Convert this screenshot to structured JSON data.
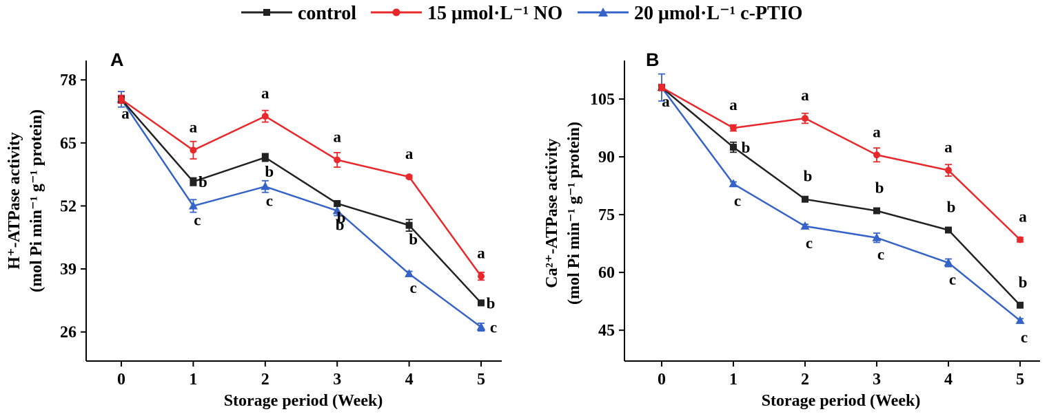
{
  "legend": {
    "items": [
      {
        "label": "control",
        "color": "#222222",
        "marker": "square"
      },
      {
        "label": "15 μmol·L⁻¹ NO",
        "color": "#e8282b",
        "marker": "circle"
      },
      {
        "label": "20 μmol·L⁻¹ c-PTIO",
        "color": "#3563c8",
        "marker": "triangle"
      }
    ]
  },
  "chart_data": [
    {
      "panel": "A",
      "type": "line",
      "xlabel": "Storage period (Week)",
      "ylabel_line1": "H⁺-ATPase activity",
      "ylabel_line2": "(mol Pi min⁻¹ g⁻¹ protein)",
      "x": [
        0,
        1,
        2,
        3,
        4,
        5
      ],
      "ylim": [
        20,
        82
      ],
      "yticks": [
        26,
        39,
        52,
        65,
        78
      ],
      "series": [
        {
          "name": "control",
          "values": [
            74,
            57,
            62,
            52.5,
            48,
            32
          ],
          "errors": [
            0.8,
            0.8,
            0.8,
            0.5,
            1.2,
            0.4
          ],
          "letters": [
            "a",
            "b",
            "b",
            "b",
            "b",
            "b"
          ]
        },
        {
          "name": "15 μmol·L⁻¹ NO",
          "values": [
            74,
            63.5,
            70.5,
            61.5,
            58,
            37.5
          ],
          "errors": [
            0.8,
            1.8,
            1.2,
            1.5,
            0.3,
            0.8
          ],
          "letters": [
            "",
            "a",
            "a",
            "a",
            "a",
            "a"
          ]
        },
        {
          "name": "20 μmol·L⁻¹ c-PTIO",
          "values": [
            74,
            52,
            56,
            51,
            38,
            27
          ],
          "errors": [
            1.6,
            1.3,
            1.2,
            1,
            0.5,
            0.8
          ],
          "letters": [
            "",
            "c",
            "c",
            "b",
            "c",
            "c"
          ]
        }
      ]
    },
    {
      "panel": "B",
      "type": "line",
      "xlabel": "Storage period (Week)",
      "ylabel_line1": "Ca²⁺-ATPase activity",
      "ylabel_line2": "(mol Pi min⁻¹ g⁻¹ protein)",
      "x": [
        0,
        1,
        2,
        3,
        4,
        5
      ],
      "ylim": [
        37,
        115
      ],
      "yticks": [
        45,
        60,
        75,
        90,
        105
      ],
      "series": [
        {
          "name": "control",
          "values": [
            108,
            92.5,
            79,
            76,
            71,
            51.5
          ],
          "errors": [
            0.8,
            1.3,
            0.6,
            0.5,
            0.4,
            0.6
          ],
          "letters": [
            "a",
            "b",
            "b",
            "b",
            "b",
            "b"
          ]
        },
        {
          "name": "15 μmol·L⁻¹ NO",
          "values": [
            108,
            97.5,
            100,
            90.5,
            86.5,
            68.5
          ],
          "errors": [
            0.8,
            0.8,
            1.3,
            1.8,
            1.5,
            0.6
          ],
          "letters": [
            "",
            "a",
            "a",
            "a",
            "a",
            "a"
          ]
        },
        {
          "name": "20 μmol·L⁻¹ c-PTIO",
          "values": [
            108,
            83,
            72,
            69,
            62.5,
            47.5
          ],
          "errors": [
            3.5,
            0.5,
            0.5,
            1.2,
            1,
            0.5
          ],
          "letters": [
            "",
            "c",
            "c",
            "c",
            "c",
            "c"
          ]
        }
      ]
    }
  ]
}
